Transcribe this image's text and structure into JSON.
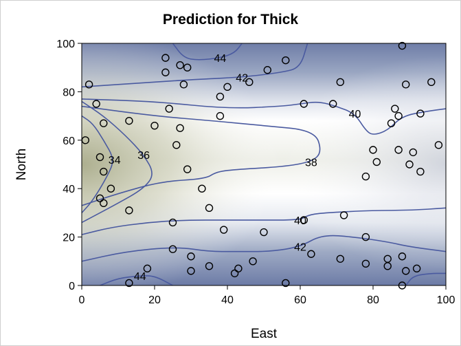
{
  "chart_data": {
    "type": "contour",
    "title": "Prediction for Thick",
    "xlabel": "East",
    "ylabel": "North",
    "xlim": [
      0,
      100
    ],
    "ylim": [
      0,
      100
    ],
    "x_ticks": [
      0,
      20,
      40,
      60,
      80,
      100
    ],
    "y_ticks": [
      0,
      20,
      40,
      60,
      80,
      100
    ],
    "grid": false,
    "colors": {
      "low": "#b3b49a",
      "mid": "#ffffff",
      "high": "#4a5a8e",
      "contour_line": "#4a5aa0",
      "marker": "#000000"
    },
    "contour_levels": [
      {
        "level": 34,
        "label": "34",
        "path": [
          [
            0,
            30
          ],
          [
            3,
            35
          ],
          [
            7,
            45
          ],
          [
            9,
            52
          ],
          [
            6,
            60
          ],
          [
            3,
            67
          ],
          [
            0,
            70
          ]
        ]
      },
      {
        "level": 36,
        "label": "36",
        "path": [
          [
            0,
            26
          ],
          [
            10,
            34
          ],
          [
            17,
            40
          ],
          [
            20,
            46
          ],
          [
            17,
            54
          ],
          [
            12,
            62
          ],
          [
            6,
            70
          ],
          [
            0,
            76
          ]
        ]
      },
      {
        "level": 38,
        "label": "38",
        "path": [
          [
            0,
            33
          ],
          [
            10,
            38
          ],
          [
            22,
            43
          ],
          [
            34,
            44
          ],
          [
            37,
            47
          ],
          [
            43,
            48
          ],
          [
            55,
            49
          ],
          [
            63,
            51
          ],
          [
            66,
            55
          ],
          [
            64,
            64
          ],
          [
            50,
            66
          ],
          [
            36,
            68
          ],
          [
            20,
            70
          ],
          [
            0,
            74
          ]
        ]
      },
      {
        "level": 40,
        "label": "40",
        "path": [
          [
            0,
            77
          ],
          [
            20,
            76
          ],
          [
            40,
            73
          ],
          [
            55,
            74
          ],
          [
            60,
            75
          ],
          [
            65,
            76
          ],
          [
            70,
            74
          ],
          [
            75,
            71
          ],
          [
            78,
            64
          ],
          [
            80,
            62
          ],
          [
            84,
            64
          ],
          [
            88,
            70
          ],
          [
            95,
            72
          ],
          [
            100,
            73
          ]
        ]
      },
      {
        "level": 40,
        "label": "40",
        "path": [
          [
            0,
            21
          ],
          [
            8,
            24
          ],
          [
            18,
            26
          ],
          [
            28,
            27
          ],
          [
            40,
            27
          ],
          [
            48,
            27
          ],
          [
            60,
            27
          ],
          [
            62,
            29
          ],
          [
            66,
            30
          ],
          [
            80,
            31
          ],
          [
            90,
            31
          ],
          [
            100,
            32
          ]
        ]
      },
      {
        "level": 42,
        "label": "42",
        "path": [
          [
            0,
            82
          ],
          [
            20,
            84
          ],
          [
            30,
            85
          ],
          [
            44,
            86
          ],
          [
            55,
            88
          ],
          [
            60,
            90
          ],
          [
            62,
            100
          ]
        ]
      },
      {
        "level": 42,
        "label": "42",
        "path": [
          [
            0,
            10
          ],
          [
            12,
            14
          ],
          [
            26,
            16
          ],
          [
            35,
            14
          ],
          [
            42,
            14
          ],
          [
            52,
            14
          ],
          [
            60,
            16
          ],
          [
            66,
            21
          ],
          [
            75,
            20
          ],
          [
            84,
            18
          ],
          [
            90,
            16
          ],
          [
            100,
            14
          ]
        ]
      },
      {
        "level": 44,
        "label": "44",
        "path": [
          [
            25,
            100
          ],
          [
            28,
            94
          ],
          [
            32,
            93
          ],
          [
            38,
            94
          ],
          [
            42,
            96
          ],
          [
            44,
            100
          ]
        ]
      },
      {
        "level": 44,
        "label": "44",
        "path": [
          [
            5,
            0
          ],
          [
            10,
            3
          ],
          [
            16,
            4
          ],
          [
            20,
            4
          ],
          [
            25,
            0
          ]
        ]
      },
      {
        "level": 44,
        "label": "",
        "path": [
          [
            89,
            0
          ],
          [
            91,
            4
          ],
          [
            96,
            5
          ],
          [
            100,
            5
          ]
        ]
      }
    ],
    "points": [
      [
        2,
        83
      ],
      [
        4,
        75
      ],
      [
        6,
        67
      ],
      [
        1,
        60
      ],
      [
        5,
        53
      ],
      [
        6,
        47
      ],
      [
        5,
        36
      ],
      [
        6,
        34
      ],
      [
        8,
        40
      ],
      [
        13,
        31
      ],
      [
        13,
        68
      ],
      [
        20,
        66
      ],
      [
        24,
        73
      ],
      [
        26,
        58
      ],
      [
        27,
        65
      ],
      [
        28,
        83
      ],
      [
        23,
        94
      ],
      [
        27,
        91
      ],
      [
        29,
        90
      ],
      [
        23,
        88
      ],
      [
        29,
        48
      ],
      [
        33,
        40
      ],
      [
        35,
        32
      ],
      [
        38,
        78
      ],
      [
        38,
        70
      ],
      [
        40,
        82
      ],
      [
        39,
        23
      ],
      [
        46,
        84
      ],
      [
        51,
        89
      ],
      [
        56,
        93
      ],
      [
        50,
        22
      ],
      [
        25,
        26
      ],
      [
        25,
        15
      ],
      [
        30,
        12
      ],
      [
        30,
        6
      ],
      [
        35,
        8
      ],
      [
        42,
        5
      ],
      [
        43,
        7
      ],
      [
        47,
        10
      ],
      [
        13,
        1
      ],
      [
        18,
        7
      ],
      [
        56,
        1
      ],
      [
        61,
        27
      ],
      [
        63,
        13
      ],
      [
        71,
        11
      ],
      [
        72,
        29
      ],
      [
        69,
        75
      ],
      [
        71,
        84
      ],
      [
        61,
        75
      ],
      [
        78,
        45
      ],
      [
        80,
        56
      ],
      [
        81,
        51
      ],
      [
        78,
        20
      ],
      [
        78,
        9
      ],
      [
        84,
        11
      ],
      [
        84,
        8
      ],
      [
        87,
        56
      ],
      [
        85,
        67
      ],
      [
        86,
        73
      ],
      [
        87,
        70
      ],
      [
        88,
        99
      ],
      [
        89,
        83
      ],
      [
        90,
        50
      ],
      [
        91,
        55
      ],
      [
        93,
        47
      ],
      [
        93,
        71
      ],
      [
        96,
        84
      ],
      [
        98,
        58
      ],
      [
        88,
        12
      ],
      [
        89,
        6
      ],
      [
        92,
        7
      ],
      [
        88,
        0
      ]
    ]
  }
}
